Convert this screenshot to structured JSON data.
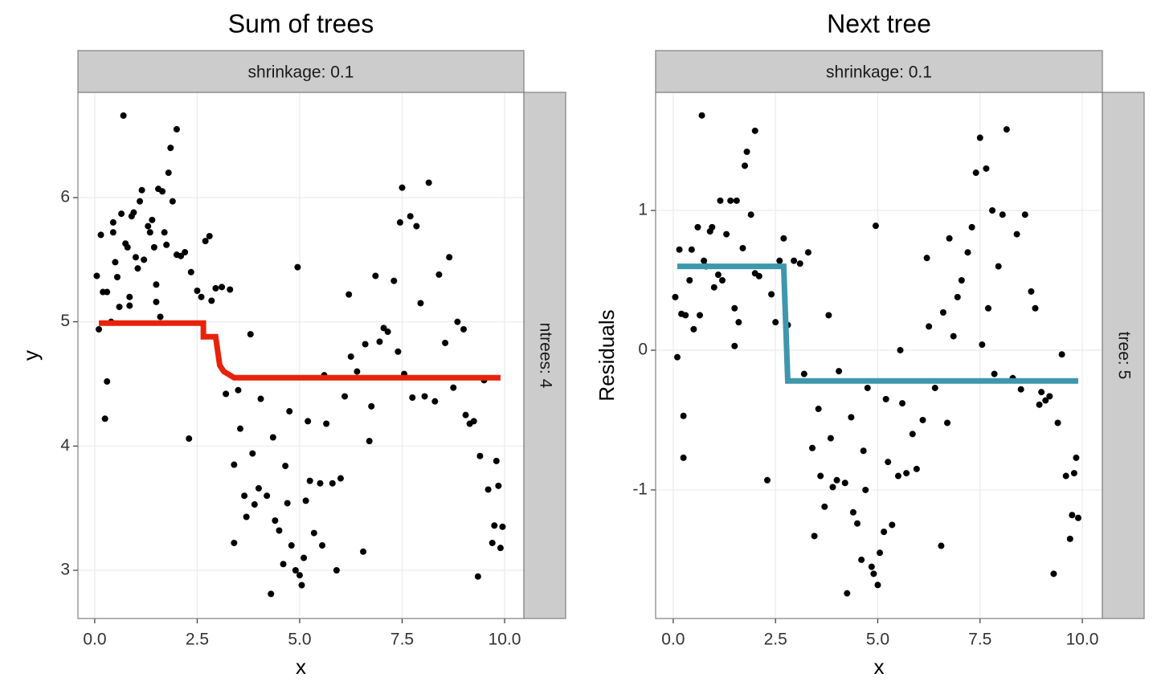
{
  "chart_data": [
    {
      "type": "scatter",
      "title": "Sum of trees",
      "x_label": "x",
      "y_label": "y",
      "strip_top": "shrinkage: 0.1",
      "strip_right": "ntrees: 4",
      "xlim": [
        -0.41,
        10.47
      ],
      "ylim": [
        2.612,
        6.847
      ],
      "xticks": [
        {
          "value": 0,
          "label": "0.0"
        },
        {
          "value": 2.5,
          "label": "2.5"
        },
        {
          "value": 5,
          "label": "5.0"
        },
        {
          "value": 7.5,
          "label": "7.5"
        },
        {
          "value": 10,
          "label": "10.0"
        }
      ],
      "yticks": [
        3,
        4,
        5,
        6
      ],
      "grid": true,
      "point_color": "#000000",
      "x": [
        0.05,
        0.1,
        0.15,
        0.2,
        0.25,
        0.3,
        0.3,
        0.4,
        0.45,
        0.45,
        0.5,
        0.55,
        0.6,
        0.65,
        0.7,
        0.75,
        0.8,
        0.85,
        0.85,
        0.9,
        0.95,
        1.0,
        1.05,
        1.1,
        1.15,
        1.2,
        1.3,
        1.35,
        1.4,
        1.45,
        1.5,
        1.5,
        1.55,
        1.6,
        1.65,
        1.7,
        1.75,
        1.8,
        1.85,
        1.9,
        2.0,
        2.0,
        2.1,
        2.2,
        2.3,
        2.35,
        2.5,
        2.6,
        2.7,
        2.8,
        2.85,
        2.95,
        3.1,
        3.2,
        3.3,
        3.4,
        3.4,
        3.5,
        3.55,
        3.65,
        3.7,
        3.8,
        3.85,
        3.9,
        4.0,
        4.05,
        4.2,
        4.3,
        4.35,
        4.4,
        4.5,
        4.6,
        4.65,
        4.7,
        4.75,
        4.8,
        4.9,
        4.95,
        5.0,
        5.05,
        5.1,
        5.15,
        5.2,
        5.25,
        5.35,
        5.5,
        5.55,
        5.6,
        5.65,
        5.8,
        5.9,
        6.0,
        6.1,
        6.2,
        6.25,
        6.4,
        6.55,
        6.6,
        6.7,
        6.75,
        6.85,
        6.95,
        7.05,
        7.15,
        7.3,
        7.4,
        7.45,
        7.5,
        7.55,
        7.7,
        7.75,
        7.85,
        7.95,
        8.05,
        8.15,
        8.3,
        8.4,
        8.55,
        8.65,
        8.75,
        8.85,
        9.0,
        9.05,
        9.15,
        9.25,
        9.35,
        9.4,
        9.5,
        9.6,
        9.7,
        9.75,
        9.8,
        9.85,
        9.9,
        9.95
      ],
      "values": [
        5.37,
        4.94,
        5.7,
        5.24,
        4.22,
        5.24,
        4.52,
        5.0,
        5.72,
        5.8,
        5.48,
        5.36,
        5.12,
        5.87,
        6.66,
        5.63,
        5.6,
        5.2,
        5.13,
        5.85,
        5.88,
        5.52,
        5.43,
        5.97,
        6.06,
        5.5,
        5.77,
        5.72,
        5.82,
        5.6,
        5.3,
        5.16,
        6.07,
        5.04,
        6.05,
        5.72,
        5.62,
        6.2,
        6.4,
        5.97,
        5.54,
        6.55,
        5.53,
        5.56,
        4.06,
        5.4,
        5.25,
        5.2,
        5.65,
        5.69,
        5.17,
        5.27,
        5.28,
        4.42,
        5.26,
        3.85,
        3.22,
        4.45,
        4.14,
        3.6,
        3.43,
        4.9,
        3.94,
        3.53,
        3.66,
        4.38,
        3.6,
        2.81,
        4.07,
        3.4,
        3.32,
        3.05,
        3.84,
        3.54,
        4.28,
        3.2,
        3.0,
        5.44,
        2.96,
        2.88,
        3.1,
        3.56,
        4.2,
        3.72,
        3.3,
        3.7,
        3.2,
        4.57,
        4.18,
        3.7,
        3.0,
        3.74,
        4.4,
        5.22,
        4.72,
        4.6,
        3.15,
        4.82,
        4.04,
        4.32,
        5.37,
        4.84,
        4.95,
        4.92,
        5.33,
        4.76,
        5.8,
        6.08,
        4.58,
        5.85,
        4.39,
        5.77,
        5.15,
        4.4,
        6.12,
        4.36,
        5.38,
        4.83,
        5.52,
        4.47,
        5.0,
        4.94,
        4.25,
        4.18,
        4.2,
        2.95,
        3.92,
        4.53,
        3.65,
        3.22,
        3.36,
        3.88,
        3.68,
        3.18,
        3.35
      ],
      "line": {
        "color": "#e8220a",
        "x": [
          0.1,
          2.65,
          2.65,
          2.95,
          3.05,
          3.15,
          3.3,
          3.4,
          9.9
        ],
        "values": [
          4.99,
          4.99,
          4.88,
          4.88,
          4.65,
          4.6,
          4.57,
          4.55,
          4.55
        ]
      }
    },
    {
      "type": "scatter",
      "title": "Next tree",
      "x_label": "x",
      "y_label": "Residuals",
      "strip_top": "shrinkage: 0.1",
      "strip_right": "tree: 5",
      "xlim": [
        -0.43,
        10.49
      ],
      "ylim": [
        -1.92,
        1.845
      ],
      "xticks": [
        {
          "value": 0,
          "label": "0.0"
        },
        {
          "value": 2.5,
          "label": "2.5"
        },
        {
          "value": 5,
          "label": "5.0"
        },
        {
          "value": 7.5,
          "label": "7.5"
        },
        {
          "value": 10,
          "label": "10.0"
        }
      ],
      "yticks": [
        -1,
        0,
        1
      ],
      "grid": true,
      "point_color": "#000000",
      "x": [
        0.05,
        0.1,
        0.15,
        0.2,
        0.25,
        0.25,
        0.3,
        0.4,
        0.45,
        0.5,
        0.6,
        0.65,
        0.7,
        0.75,
        0.8,
        0.9,
        0.95,
        1.0,
        1.1,
        1.15,
        1.2,
        1.3,
        1.4,
        1.5,
        1.5,
        1.55,
        1.6,
        1.7,
        1.75,
        1.8,
        1.9,
        2.0,
        2.0,
        2.1,
        2.3,
        2.4,
        2.5,
        2.6,
        2.7,
        2.8,
        2.95,
        3.1,
        3.2,
        3.3,
        3.4,
        3.45,
        3.55,
        3.6,
        3.7,
        3.8,
        3.85,
        3.9,
        4.0,
        4.05,
        4.2,
        4.25,
        4.35,
        4.4,
        4.5,
        4.6,
        4.65,
        4.7,
        4.75,
        4.85,
        4.9,
        4.95,
        5.0,
        5.05,
        5.15,
        5.2,
        5.25,
        5.35,
        5.5,
        5.55,
        5.6,
        5.7,
        5.85,
        5.95,
        6.1,
        6.2,
        6.25,
        6.4,
        6.55,
        6.6,
        6.7,
        6.75,
        6.85,
        6.95,
        7.05,
        7.2,
        7.3,
        7.4,
        7.5,
        7.55,
        7.65,
        7.7,
        7.8,
        7.85,
        7.95,
        8.05,
        8.15,
        8.3,
        8.4,
        8.5,
        8.6,
        8.75,
        8.85,
        8.95,
        9.0,
        9.1,
        9.2,
        9.3,
        9.4,
        9.5,
        9.6,
        9.7,
        9.75,
        9.8,
        9.85,
        9.9
      ],
      "values": [
        0.38,
        -0.05,
        0.72,
        0.26,
        -0.47,
        -0.77,
        0.25,
        0.5,
        0.72,
        0.15,
        0.88,
        0.25,
        1.68,
        0.64,
        0.6,
        0.85,
        0.88,
        0.45,
        0.54,
        1.07,
        0.5,
        0.83,
        1.07,
        0.03,
        0.3,
        1.07,
        0.2,
        0.73,
        1.32,
        1.42,
        0.97,
        0.55,
        1.57,
        0.53,
        -0.93,
        0.4,
        0.2,
        0.64,
        0.8,
        0.18,
        0.64,
        0.62,
        -0.17,
        0.7,
        -0.7,
        -1.33,
        -0.42,
        -0.9,
        -1.12,
        0.25,
        -0.63,
        -0.98,
        -0.93,
        -0.15,
        -0.95,
        -1.74,
        -0.48,
        -1.16,
        -1.24,
        -1.5,
        -0.72,
        -1.0,
        -0.27,
        -1.55,
        -1.6,
        0.89,
        -1.68,
        -1.45,
        -1.3,
        -0.35,
        -0.8,
        -1.25,
        -0.9,
        0.0,
        -0.38,
        -0.88,
        -0.6,
        -0.85,
        -0.5,
        0.66,
        0.17,
        -0.27,
        -1.4,
        0.27,
        -0.52,
        0.8,
        0.1,
        0.38,
        0.5,
        0.7,
        0.88,
        1.27,
        1.52,
        0.04,
        1.3,
        0.3,
        1.0,
        -0.17,
        0.6,
        0.97,
        1.58,
        -0.2,
        0.83,
        -0.28,
        0.97,
        0.42,
        0.3,
        -0.39,
        -0.3,
        -0.36,
        -0.33,
        -1.6,
        -0.52,
        -0.03,
        -0.9,
        -1.35,
        -1.18,
        -0.88,
        -0.77,
        -1.2
      ],
      "line": {
        "color": "#3d97ad",
        "x": [
          0.1,
          2.7,
          2.8,
          9.9
        ],
        "values": [
          0.6,
          0.6,
          -0.22,
          -0.22
        ]
      }
    }
  ]
}
